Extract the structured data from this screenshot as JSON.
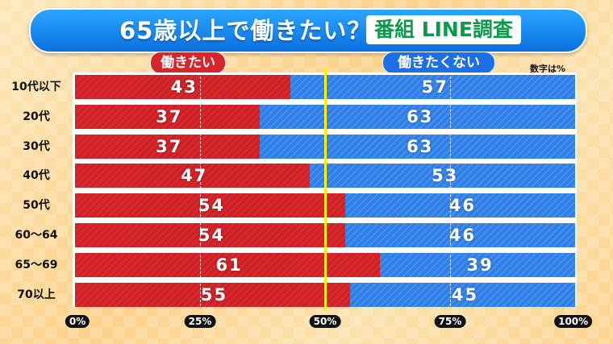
{
  "header": {
    "title": "65歳以上で働きたい？",
    "badge": "番組 LINE調査"
  },
  "colors": {
    "work": "#d8262b",
    "not_work": "#2f7fe8",
    "title_bg": "#0b6fe0",
    "midline": "#fff200"
  },
  "chart_data": {
    "type": "bar",
    "orientation": "horizontal",
    "stacked": true,
    "percent_stacked": true,
    "title": "65歳以上で働きたい？",
    "subtitle": "番組 LINE調査",
    "unit_note": "数字は%",
    "categories": [
      "10代以下",
      "20代",
      "30代",
      "40代",
      "50代",
      "60〜64",
      "65〜69",
      "70以上"
    ],
    "series": [
      {
        "name": "働きたい",
        "values": [
          43,
          37,
          37,
          47,
          54,
          54,
          61,
          55
        ]
      },
      {
        "name": "働きたくない",
        "values": [
          57,
          63,
          63,
          53,
          46,
          46,
          39,
          45
        ]
      }
    ],
    "xlim": [
      0,
      100
    ],
    "x_ticks": [
      "0%",
      "25%",
      "50%",
      "75%",
      "100%"
    ],
    "legend_position": "top"
  }
}
